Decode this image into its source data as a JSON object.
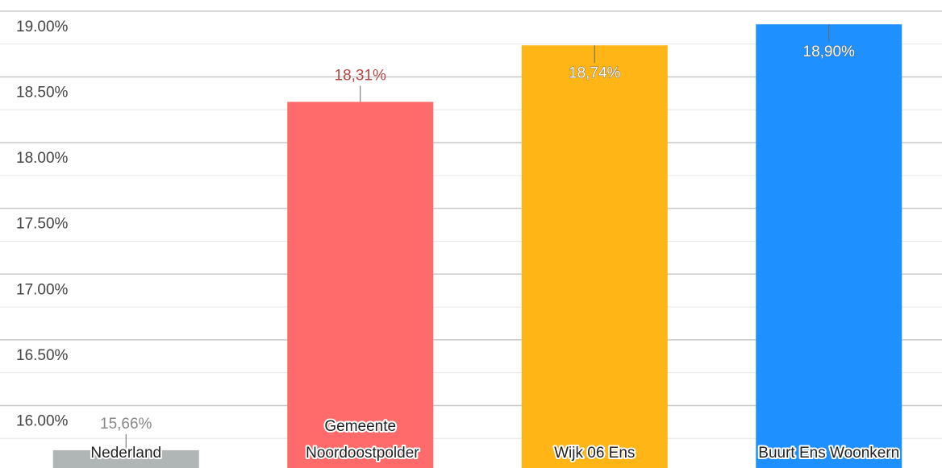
{
  "chart_data": {
    "type": "bar",
    "categories": [
      "Nederland",
      "Gemeente Noordoostpolder",
      "Wijk 06 Ens",
      "Buurt Ens Woonkern"
    ],
    "values": [
      15.66,
      18.31,
      18.74,
      18.9
    ],
    "value_labels": [
      "15,66%",
      "18,31%",
      "18,74%",
      "18,90%"
    ],
    "colors": [
      "#b0b6b5",
      "#ff6b6b",
      "#ffb515",
      "#1e90ff"
    ],
    "label_colors": [
      "#888888",
      "#b04848",
      "#ffffff",
      "#ffffff"
    ],
    "ylim": [
      15.525,
      19.085
    ],
    "yticks": [
      {
        "value": 16,
        "label": "16.00%"
      },
      {
        "value": 16.5,
        "label": "16.50%"
      },
      {
        "value": 17,
        "label": "17.00%"
      },
      {
        "value": 17.5,
        "label": "17.50%"
      },
      {
        "value": 18,
        "label": "18.00%"
      },
      {
        "value": 18.5,
        "label": "18.50%"
      },
      {
        "value": 19,
        "label": "19.00%"
      }
    ],
    "minor_yticks": [
      15.75,
      16.25,
      16.75,
      17.25,
      17.75,
      18.25,
      18.75
    ],
    "grid": true
  }
}
